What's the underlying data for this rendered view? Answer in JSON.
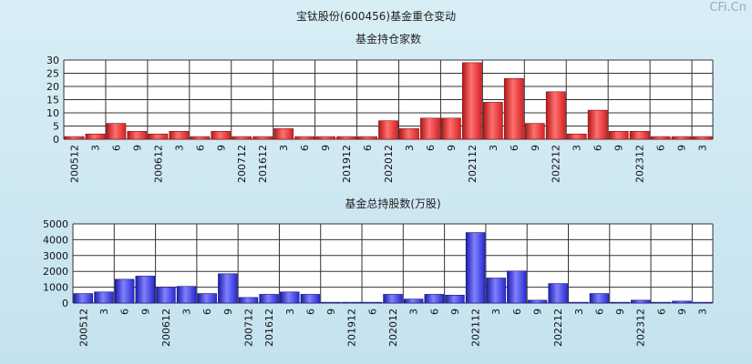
{
  "page": {
    "title": "宝钛股份(600456)基金重仓变动",
    "watermark": "CFi.Cn"
  },
  "colors": {
    "background": "#cde6f0",
    "red_bar": "#e83030",
    "blue_bar": "#3a3ae0",
    "grid": "#222222"
  },
  "chart_data": [
    {
      "type": "bar",
      "title": "基金持仓家数",
      "ylim": [
        0,
        30
      ],
      "yticks": [
        0,
        5,
        10,
        15,
        20,
        25,
        30
      ],
      "categories": [
        "200512",
        "3",
        "6",
        "9",
        "200612",
        "3",
        "6",
        "9",
        "200712",
        "201612",
        "3",
        "6",
        "9",
        "201912",
        "6",
        "202012",
        "3",
        "6",
        "9",
        "202112",
        "3",
        "6",
        "9",
        "202212",
        "3",
        "6",
        "9",
        "202312",
        "6",
        "9",
        "3"
      ],
      "values": [
        1,
        2,
        6,
        3,
        2,
        3,
        1,
        3,
        1,
        1,
        4,
        1,
        1,
        1,
        1,
        7,
        4,
        8,
        8,
        29,
        14,
        23,
        6,
        18,
        2,
        11,
        3,
        3,
        1,
        1,
        1
      ],
      "color": "red"
    },
    {
      "type": "bar",
      "title": "基金总持股数(万股)",
      "ylim": [
        0,
        5000
      ],
      "yticks": [
        0,
        1000,
        2000,
        3000,
        4000,
        5000
      ],
      "categories": [
        "200512",
        "3",
        "6",
        "9",
        "200612",
        "3",
        "6",
        "9",
        "200712",
        "201612",
        "3",
        "6",
        "9",
        "201912",
        "6",
        "202012",
        "3",
        "6",
        "9",
        "202112",
        "3",
        "6",
        "9",
        "202212",
        "3",
        "6",
        "9",
        "202312",
        "6",
        "9",
        "3"
      ],
      "values": [
        600,
        700,
        1500,
        1700,
        1000,
        1050,
        600,
        1850,
        350,
        550,
        700,
        550,
        50,
        50,
        50,
        550,
        250,
        550,
        500,
        4450,
        1580,
        2020,
        180,
        1230,
        50,
        600,
        50,
        180,
        50,
        120,
        50
      ],
      "color": "blue"
    }
  ]
}
